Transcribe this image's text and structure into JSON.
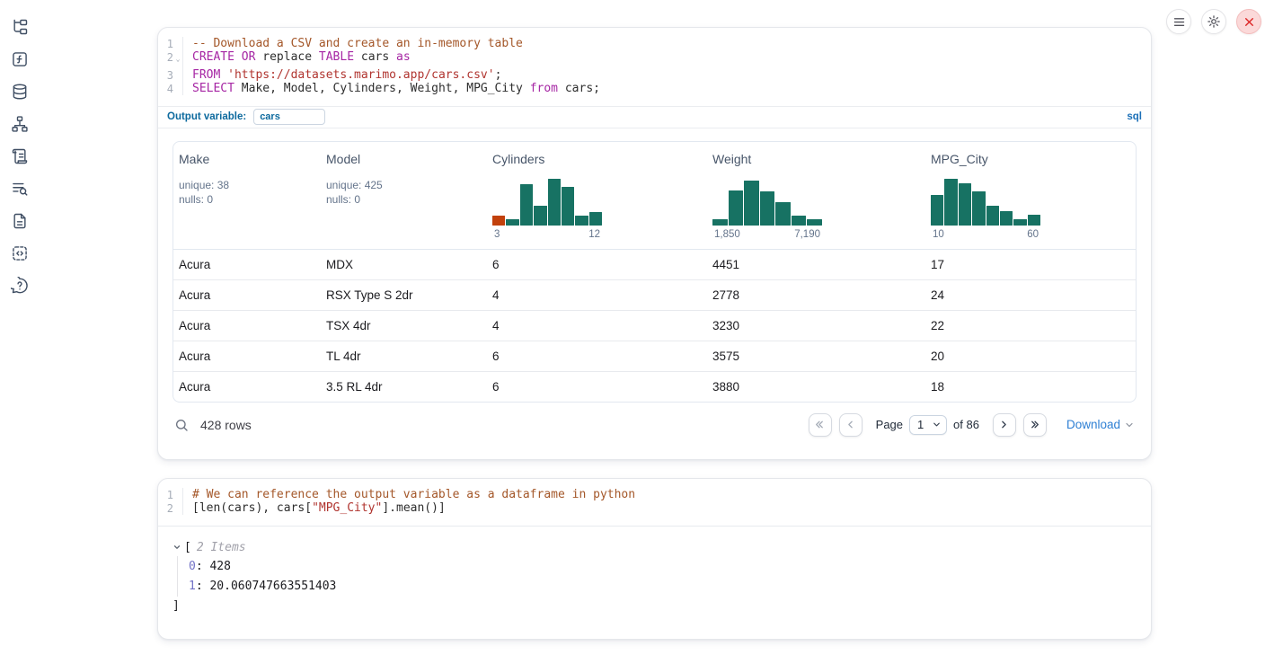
{
  "colors": {
    "accent_blue": "#0d6a9e",
    "link_blue": "#2f80d4",
    "hist_teal": "#177263",
    "hist_orange": "#c2410c",
    "keyword": "#a626a4",
    "string": "#b0342f",
    "comment": "#a45729",
    "danger_red": "#dc2626"
  },
  "sidebar": {
    "icons": [
      {
        "name": "file-explorer-icon"
      },
      {
        "name": "scratchpad-icon"
      },
      {
        "name": "datasources-icon"
      },
      {
        "name": "dependency-graph-icon"
      },
      {
        "name": "logs-icon"
      },
      {
        "name": "outline-search-icon"
      },
      {
        "name": "documentation-icon"
      },
      {
        "name": "snippets-icon"
      },
      {
        "name": "help-icon"
      }
    ]
  },
  "topbar": {
    "menu": "notebook-menu",
    "settings": "settings",
    "close": "shutdown"
  },
  "sql_cell": {
    "language_badge": "sql",
    "output_variable_label": "Output variable:",
    "output_variable_value": "cars",
    "lines": [
      {
        "num": "1",
        "fold": false,
        "tokens": [
          {
            "t": "com",
            "v": "-- Download a CSV and create an in-memory table"
          }
        ]
      },
      {
        "num": "2",
        "fold": true,
        "tokens": [
          {
            "t": "kw",
            "v": "CREATE"
          },
          {
            "t": "plain",
            "v": " "
          },
          {
            "t": "kw",
            "v": "OR"
          },
          {
            "t": "plain",
            "v": " replace "
          },
          {
            "t": "kw",
            "v": "TABLE"
          },
          {
            "t": "plain",
            "v": " cars "
          },
          {
            "t": "kw",
            "v": "as"
          }
        ]
      },
      {
        "num": "3",
        "fold": false,
        "tokens": [
          {
            "t": "kw",
            "v": "FROM"
          },
          {
            "t": "plain",
            "v": " "
          },
          {
            "t": "str",
            "v": "'https://datasets.marimo.app/cars.csv'"
          },
          {
            "t": "plain",
            "v": ";"
          }
        ]
      },
      {
        "num": "4",
        "fold": false,
        "tokens": [
          {
            "t": "kw",
            "v": "SELECT"
          },
          {
            "t": "plain",
            "v": " Make, Model, Cylinders, Weight, MPG_City "
          },
          {
            "t": "kw",
            "v": "from"
          },
          {
            "t": "plain",
            "v": " cars;"
          }
        ]
      }
    ]
  },
  "table": {
    "columns": [
      {
        "name": "Make",
        "stats": [
          "unique: 38",
          "nulls: 0"
        ]
      },
      {
        "name": "Model",
        "stats": [
          "unique: 425",
          "nulls: 0"
        ]
      },
      {
        "name": "Cylinders",
        "chart_index": 0
      },
      {
        "name": "Weight",
        "chart_index": 1
      },
      {
        "name": "MPG_City",
        "chart_index": 2
      }
    ],
    "rows": [
      [
        "Acura",
        "MDX",
        "6",
        "4451",
        "17"
      ],
      [
        "Acura",
        "RSX Type S 2dr",
        "4",
        "2778",
        "24"
      ],
      [
        "Acura",
        "TSX 4dr",
        "4",
        "3230",
        "22"
      ],
      [
        "Acura",
        "TL 4dr",
        "6",
        "3575",
        "20"
      ],
      [
        "Acura",
        "3.5 RL 4dr",
        "6",
        "3880",
        "18"
      ]
    ],
    "footer": {
      "row_count": "428 rows",
      "page_label": "Page",
      "page_value": "1",
      "total_label": "of 86",
      "download_label": "Download"
    }
  },
  "chart_data": [
    {
      "type": "bar",
      "title": "Cylinders column histogram",
      "x_range_labels": [
        "3",
        "12"
      ],
      "x_min": 3,
      "x_max": 12,
      "values_relative_pct": [
        20,
        12,
        88,
        42,
        100,
        82,
        20,
        28
      ],
      "bar_colors": [
        "#c2410c",
        "#177263",
        "#177263",
        "#177263",
        "#177263",
        "#177263",
        "#177263",
        "#177263"
      ],
      "grid": false,
      "legend": false
    },
    {
      "type": "bar",
      "title": "Weight column histogram",
      "x_range_labels": [
        "1,850",
        "7,190"
      ],
      "x_min": 1850,
      "x_max": 7190,
      "values_relative_pct": [
        12,
        75,
        95,
        72,
        50,
        20,
        12
      ],
      "bar_colors": [
        "#177263",
        "#177263",
        "#177263",
        "#177263",
        "#177263",
        "#177263",
        "#177263"
      ],
      "grid": false,
      "legend": false
    },
    {
      "type": "bar",
      "title": "MPG_City column histogram",
      "x_range_labels": [
        "10",
        "60"
      ],
      "x_min": 10,
      "x_max": 60,
      "values_relative_pct": [
        65,
        100,
        90,
        72,
        42,
        30,
        13,
        22
      ],
      "bar_colors": [
        "#177263",
        "#177263",
        "#177263",
        "#177263",
        "#177263",
        "#177263",
        "#177263",
        "#177263"
      ],
      "grid": false,
      "legend": false
    }
  ],
  "python_cell": {
    "lines": [
      {
        "num": "1",
        "fold": false,
        "tokens": [
          {
            "t": "com",
            "v": "# We can reference the output variable as a dataframe in python"
          }
        ]
      },
      {
        "num": "2",
        "fold": false,
        "tokens": [
          {
            "t": "plain",
            "v": "[len(cars), cars["
          },
          {
            "t": "str",
            "v": "\"MPG_City\""
          },
          {
            "t": "plain",
            "v": "].mean()]"
          }
        ]
      }
    ],
    "output": {
      "bracket_open": "[",
      "items_label": "2 Items",
      "items": [
        {
          "key": "0",
          "value": "428"
        },
        {
          "key": "1",
          "value": "20.060747663551403"
        }
      ],
      "bracket_close": "]"
    }
  }
}
